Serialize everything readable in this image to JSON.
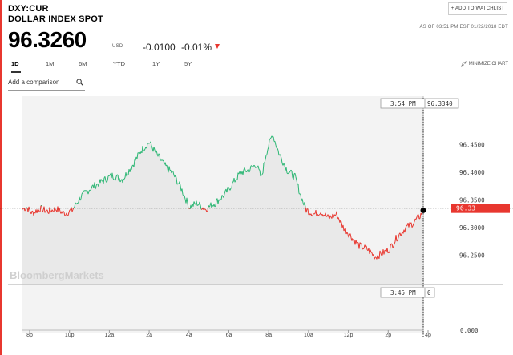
{
  "quote": {
    "ticker": "DXY:CUR",
    "name": "DOLLAR INDEX SPOT",
    "price": "96.3260",
    "currency": "USD",
    "change": "-0.0100",
    "change_pct": "-0.01%",
    "as_of": "AS OF 03:51 PM EST 01/22/2018 EDT"
  },
  "actions": {
    "watchlist": "+ ADD TO WATCHLIST",
    "minimize": "MINIMIZE CHART"
  },
  "tabs": [
    {
      "label": "1D",
      "active": true
    },
    {
      "label": "1M"
    },
    {
      "label": "6M"
    },
    {
      "label": "YTD"
    },
    {
      "label": "1Y"
    },
    {
      "label": "5Y"
    }
  ],
  "compare": {
    "placeholder": "Add a comparison"
  },
  "watermark": "BloombergMarkets",
  "colors": {
    "up": "#2bb673",
    "down": "#e8372f",
    "accent": "#e8372f"
  },
  "chart_data": {
    "type": "line",
    "baseline": 96.336,
    "y_ticks": [
      "96.4500",
      "96.4000",
      "96.3500",
      "96.3000",
      "96.2500"
    ],
    "y_tick_values": [
      96.45,
      96.4,
      96.35,
      96.3,
      96.25
    ],
    "x_ticks": [
      "8p",
      "10p",
      "12a",
      "2a",
      "4a",
      "6a",
      "8a",
      "10a",
      "12p",
      "2p",
      "4p"
    ],
    "crosshair_top": {
      "time": "3:54 PM",
      "value": "96.3340"
    },
    "crosshair_bottom": {
      "time": "3:45 PM",
      "value": "0"
    },
    "last_label": "96.33",
    "volume_axis_label": "0.000",
    "keypoints": [
      [
        0,
        96.334
      ],
      [
        5,
        96.338
      ],
      [
        12,
        96.327
      ],
      [
        22,
        96.335
      ],
      [
        32,
        96.33
      ],
      [
        42,
        96.335
      ],
      [
        52,
        96.326
      ],
      [
        62,
        96.332
      ],
      [
        72,
        96.355
      ],
      [
        85,
        96.372
      ],
      [
        100,
        96.385
      ],
      [
        112,
        96.395
      ],
      [
        125,
        96.388
      ],
      [
        138,
        96.415
      ],
      [
        148,
        96.44
      ],
      [
        158,
        96.455
      ],
      [
        168,
        96.432
      ],
      [
        178,
        96.412
      ],
      [
        188,
        96.398
      ],
      [
        198,
        96.372
      ],
      [
        208,
        96.338
      ],
      [
        218,
        96.345
      ],
      [
        228,
        96.334
      ],
      [
        240,
        96.345
      ],
      [
        252,
        96.36
      ],
      [
        262,
        96.38
      ],
      [
        272,
        96.4
      ],
      [
        282,
        96.405
      ],
      [
        292,
        96.415
      ],
      [
        298,
        96.39
      ],
      [
        304,
        96.435
      ],
      [
        312,
        96.47
      ],
      [
        320,
        96.435
      ],
      [
        330,
        96.405
      ],
      [
        340,
        96.392
      ],
      [
        348,
        96.355
      ],
      [
        354,
        96.333
      ],
      [
        364,
        96.325
      ],
      [
        372,
        96.33
      ],
      [
        382,
        96.318
      ],
      [
        392,
        96.325
      ],
      [
        400,
        96.302
      ],
      [
        410,
        96.285
      ],
      [
        420,
        96.268
      ],
      [
        430,
        96.262
      ],
      [
        440,
        96.248
      ],
      [
        450,
        96.255
      ],
      [
        458,
        96.262
      ],
      [
        468,
        96.285
      ],
      [
        478,
        96.3
      ],
      [
        488,
        96.31
      ],
      [
        496,
        96.322
      ],
      [
        500,
        96.332
      ]
    ]
  }
}
